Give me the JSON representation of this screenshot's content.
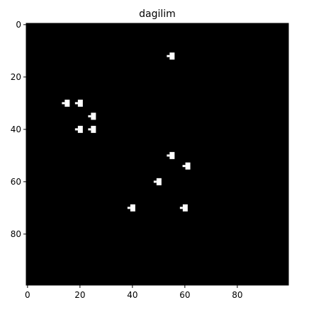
{
  "chart_data": {
    "type": "heatmap",
    "title": "dagilim",
    "xlabel": "",
    "ylabel": "",
    "grid_size": [
      100,
      100
    ],
    "xlim": [
      0,
      100
    ],
    "ylim": [
      100,
      0
    ],
    "x_ticks": [
      0,
      20,
      40,
      60,
      80
    ],
    "y_ticks": [
      0,
      20,
      40,
      60,
      80
    ],
    "background_value": 0,
    "background_color": "#000000",
    "marker_color": "#ffffff",
    "points": [
      {
        "x": 55,
        "y": 12
      },
      {
        "x": 15,
        "y": 30
      },
      {
        "x": 20,
        "y": 30
      },
      {
        "x": 25,
        "y": 35
      },
      {
        "x": 20,
        "y": 40
      },
      {
        "x": 25,
        "y": 40
      },
      {
        "x": 55,
        "y": 50
      },
      {
        "x": 61,
        "y": 54
      },
      {
        "x": 50,
        "y": 60
      },
      {
        "x": 40,
        "y": 70
      },
      {
        "x": 60,
        "y": 70
      }
    ]
  }
}
